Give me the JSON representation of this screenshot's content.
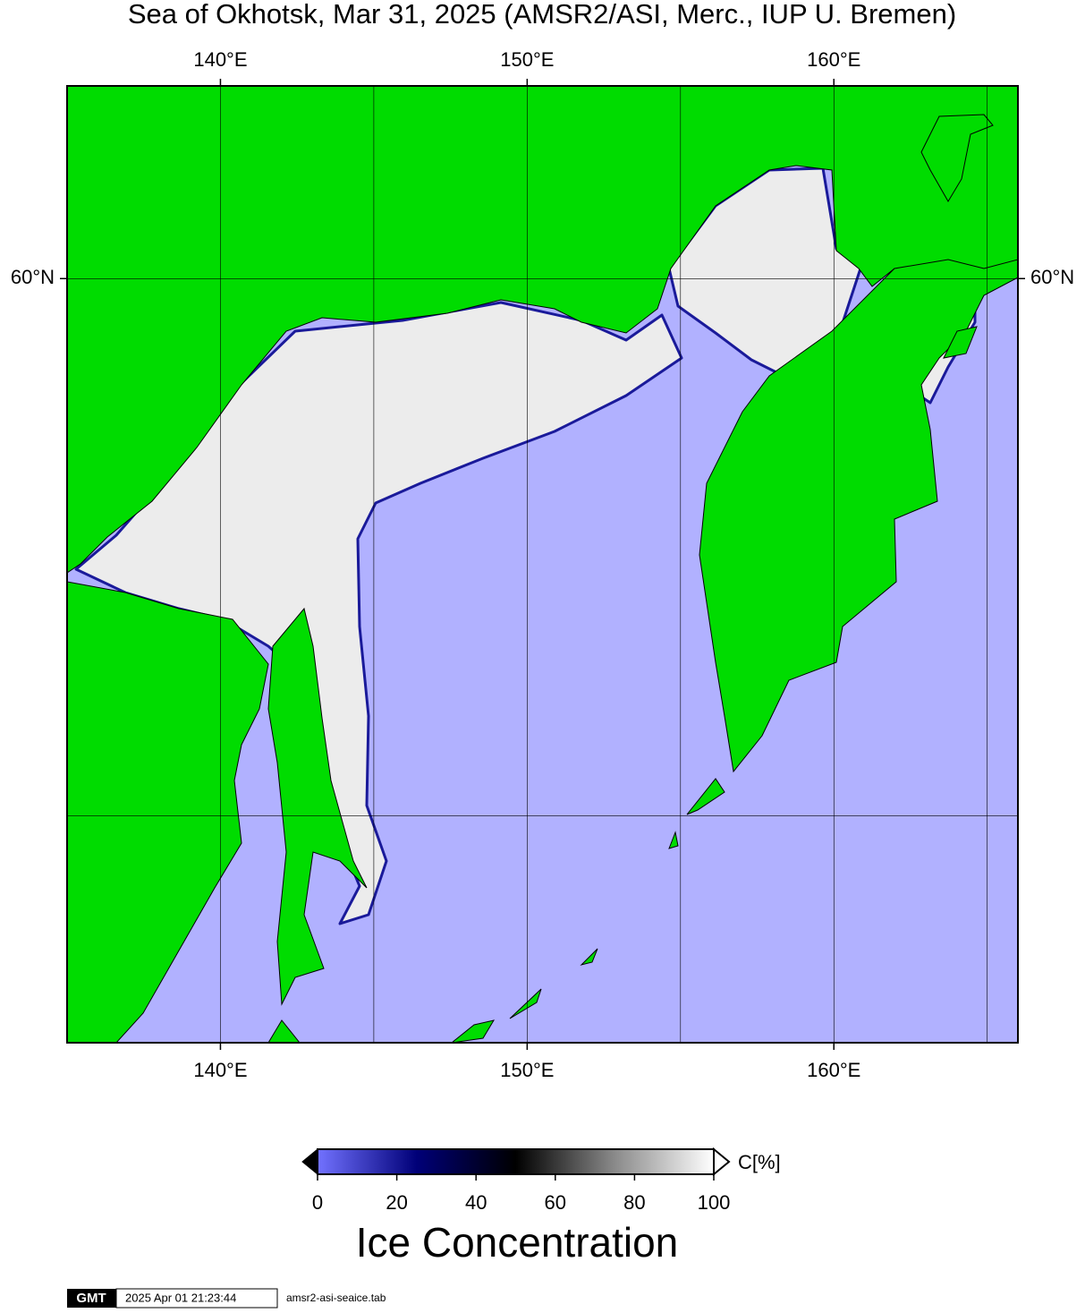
{
  "title": "Sea of Okhotsk, Mar 31, 2025 (AMSR2/ASI, Merc., IUP U. Bremen)",
  "map": {
    "lonlim": [
      135,
      166
    ],
    "latlim": [
      45,
      63
    ],
    "lon_ticks": [
      {
        "value": 140,
        "label": "140°E"
      },
      {
        "value": 150,
        "label": "150°E"
      },
      {
        "value": 160,
        "label": "160°E"
      }
    ],
    "lat_ticks": [
      {
        "value": 60,
        "label": "60°N"
      }
    ],
    "lon_gridlines": [
      140,
      145,
      150,
      155,
      160,
      165
    ],
    "lat_gridlines": [
      50,
      60
    ]
  },
  "colorbar": {
    "range": [
      0,
      100
    ],
    "ticks": [
      0,
      20,
      40,
      60,
      80,
      100
    ],
    "unit": "C[%]",
    "title": "Ice Concentration"
  },
  "footer": {
    "logo": "GMT",
    "timestamp": "2025 Apr 01 21:23:44",
    "file": "amsr2-asi-seaice.tab"
  }
}
